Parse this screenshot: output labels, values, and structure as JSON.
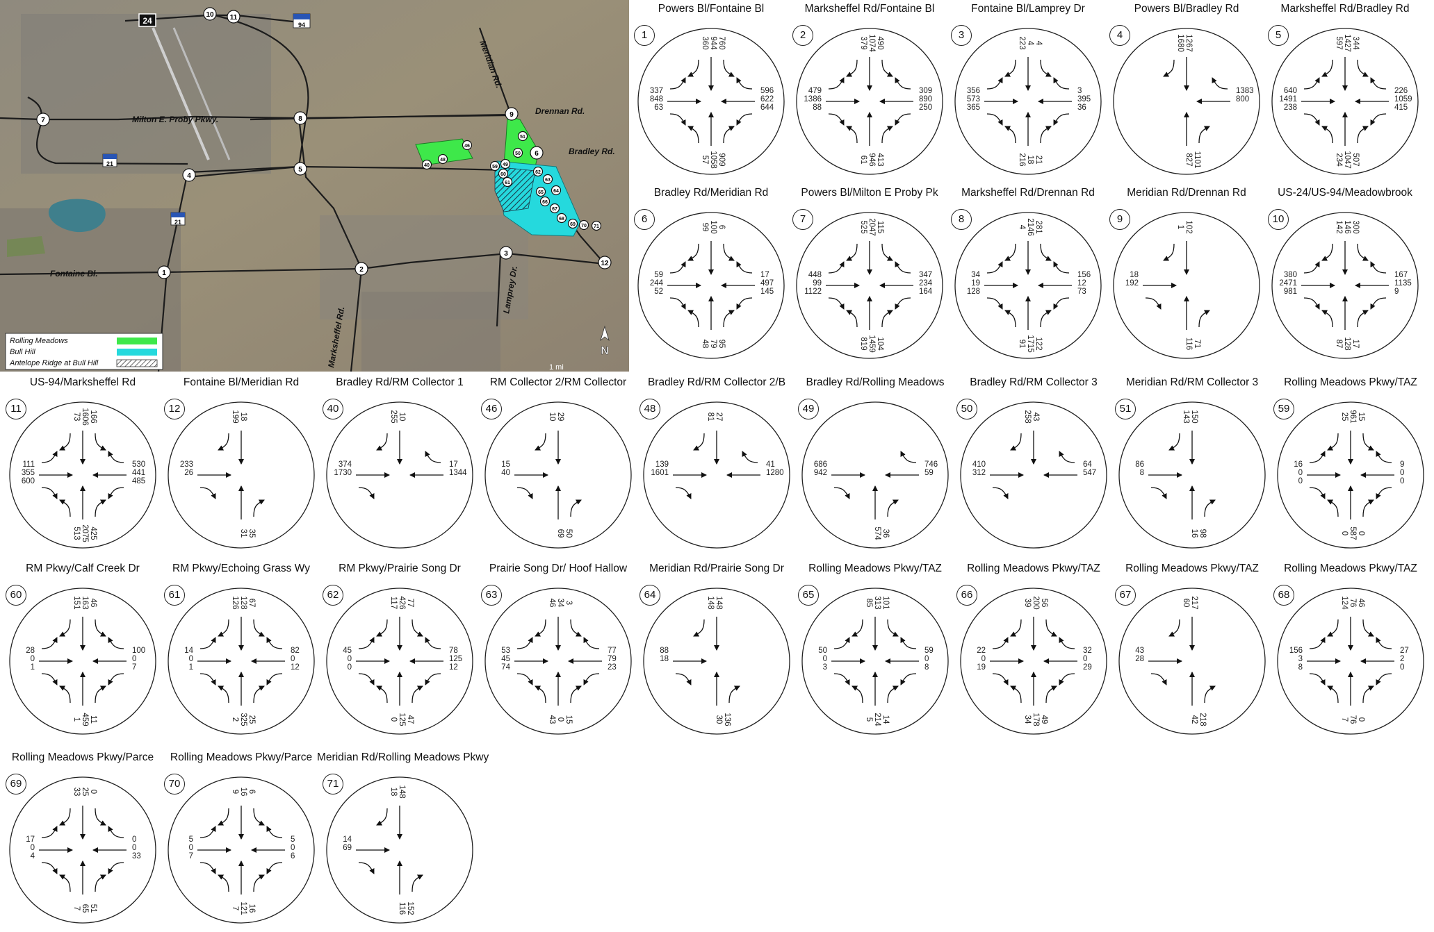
{
  "map": {
    "roads": [
      "Milton E. Proby Pkwy.",
      "Fontaine Bl.",
      "Marksheffel Rd.",
      "Meridian Rd.",
      "Drennan Rd.",
      "Bradley Rd.",
      "Lamprey Dr."
    ],
    "highway_shields": [
      "24",
      "94",
      "21",
      "21"
    ],
    "intersection_markers": [
      "1",
      "2",
      "3",
      "4",
      "5",
      "6",
      "7",
      "8",
      "9",
      "10",
      "11",
      "12",
      "40",
      "46",
      "48",
      "49",
      "50",
      "51",
      "59",
      "60",
      "61",
      "62",
      "63",
      "64",
      "65",
      "66",
      "67",
      "68",
      "69",
      "70",
      "71"
    ],
    "legend": [
      {
        "label": "Rolling Meadows",
        "color": "#3ee84a"
      },
      {
        "label": "Bull Hill",
        "color": "#25d9dd"
      },
      {
        "label": "Antelope Ridge at Bull Hill",
        "color": "hatch"
      }
    ],
    "north_label": "N",
    "scale_label": "1 mi"
  },
  "panels": [
    {
      "id": "1",
      "title": "Powers Bl/Fontaine Bl",
      "legs": {
        "N": [
          "360",
          "944",
          "760"
        ],
        "E": [
          "596",
          "622",
          "644"
        ],
        "S": [
          "909",
          "1058",
          "57"
        ],
        "W": [
          "337",
          "848",
          "63"
        ]
      }
    },
    {
      "id": "2",
      "title": "Marksheffel Rd/Fontaine Bl",
      "legs": {
        "N": [
          "379",
          "1074",
          "490"
        ],
        "E": [
          "309",
          "890",
          "250"
        ],
        "S": [
          "413",
          "946",
          "61"
        ],
        "W": [
          "479",
          "1386",
          "88"
        ]
      }
    },
    {
      "id": "3",
      "title": "Fontaine Bl/Lamprey Dr",
      "legs": {
        "N": [
          "223",
          "4",
          "4"
        ],
        "E": [
          "3",
          "395",
          "36"
        ],
        "S": [
          "21",
          "18",
          "216"
        ],
        "W": [
          "356",
          "573",
          "365"
        ]
      }
    },
    {
      "id": "4",
      "title": "Powers Bl/Bradley Rd",
      "legs": {
        "N": [
          "1680",
          "1267"
        ],
        "E": [
          "1383",
          "800"
        ],
        "S": [
          "1101",
          "827"
        ]
      }
    },
    {
      "id": "5",
      "title": "Marksheffel Rd/Bradley Rd",
      "legs": {
        "N": [
          "597",
          "1427",
          "344"
        ],
        "E": [
          "226",
          "1059",
          "415"
        ],
        "S": [
          "507",
          "1047",
          "234"
        ],
        "W": [
          "640",
          "1491",
          "238"
        ]
      }
    },
    {
      "id": "6",
      "title": "Bradley Rd/Meridian Rd",
      "legs": {
        "N": [
          "99",
          "100",
          "6"
        ],
        "E": [
          "17",
          "497",
          "145"
        ],
        "S": [
          "95",
          "79",
          "48"
        ],
        "W": [
          "59",
          "244",
          "52"
        ]
      }
    },
    {
      "id": "7",
      "title": "Powers Bl/Milton E Proby Pk",
      "legs": {
        "N": [
          "525",
          "2047",
          "115"
        ],
        "E": [
          "347",
          "234",
          "164"
        ],
        "S": [
          "104",
          "1459",
          "819"
        ],
        "W": [
          "448",
          "99",
          "1122"
        ]
      }
    },
    {
      "id": "8",
      "title": "Marksheffel Rd/Drennan Rd",
      "legs": {
        "N": [
          "4",
          "2146",
          "281"
        ],
        "E": [
          "156",
          "12",
          "73"
        ],
        "S": [
          "122",
          "1715",
          "91"
        ],
        "W": [
          "34",
          "19",
          "128"
        ]
      }
    },
    {
      "id": "9",
      "title": "Meridian Rd/Drennan Rd",
      "legs": {
        "N": [
          "1",
          "102"
        ],
        "W": [
          "18",
          "192"
        ],
        "S": [
          "71",
          "116"
        ]
      }
    },
    {
      "id": "10",
      "title": "US-24/US-94/Meadowbrook",
      "legs": {
        "N": [
          "142",
          "146",
          "300"
        ],
        "E": [
          "167",
          "1135",
          "9"
        ],
        "S": [
          "17",
          "128",
          "87"
        ],
        "W": [
          "380",
          "2471",
          "981"
        ]
      }
    },
    {
      "id": "11",
      "title": "US-94/Marksheffel Rd",
      "legs": {
        "N": [
          "73",
          "1606",
          "166"
        ],
        "E": [
          "530",
          "441",
          "485"
        ],
        "S": [
          "425",
          "2075",
          "513"
        ],
        "W": [
          "111",
          "355",
          "600"
        ]
      }
    },
    {
      "id": "12",
      "title": "Fontaine Bl/Meridian Rd",
      "legs": {
        "N": [
          "199",
          "18"
        ],
        "W": [
          "233",
          "26"
        ],
        "S": [
          "35",
          "31"
        ]
      }
    },
    {
      "id": "40",
      "title": "Bradley Rd/RM Collector 1",
      "legs": {
        "N": [
          "255",
          "10"
        ],
        "E": [
          "17",
          "1344"
        ],
        "W": [
          "374",
          "1730"
        ]
      }
    },
    {
      "id": "46",
      "title": "RM Collector 2/RM Collector",
      "legs": {
        "N": [
          "10",
          "29"
        ],
        "W": [
          "15",
          "40"
        ],
        "S": [
          "50",
          "69"
        ]
      }
    },
    {
      "id": "48",
      "title": "Bradley Rd/RM Collector 2/B",
      "legs": {
        "N": [
          "81",
          "27"
        ],
        "E": [
          "41",
          "1280"
        ],
        "W": [
          "139",
          "1601"
        ]
      }
    },
    {
      "id": "49",
      "title": "Bradley Rd/Rolling Meadows",
      "legs": {
        "E": [
          "746",
          "59"
        ],
        "S": [
          "36",
          "574"
        ],
        "W": [
          "686",
          "942"
        ]
      }
    },
    {
      "id": "50",
      "title": "Bradley Rd/RM Collector 3",
      "legs": {
        "N": [
          "258",
          "43"
        ],
        "E": [
          "64",
          "547"
        ],
        "W": [
          "410",
          "312"
        ]
      }
    },
    {
      "id": "51",
      "title": "Meridian Rd/RM Collector 3",
      "legs": {
        "N": [
          "143",
          "150"
        ],
        "W": [
          "86",
          "8"
        ],
        "S": [
          "98",
          "16"
        ]
      }
    },
    {
      "id": "59",
      "title": "Rolling Meadows Pkwy/TAZ",
      "legs": {
        "N": [
          "25",
          "961",
          "15"
        ],
        "E": [
          "9",
          "0",
          "0"
        ],
        "S": [
          "0",
          "587",
          "0"
        ],
        "W": [
          "16",
          "0",
          "0"
        ]
      }
    },
    {
      "id": "60",
      "title": "RM Pkwy/Calf Creek Dr",
      "legs": {
        "N": [
          "151",
          "163",
          "46"
        ],
        "E": [
          "100",
          "0",
          "7"
        ],
        "S": [
          "11",
          "459",
          "1"
        ],
        "W": [
          "28",
          "0",
          "1"
        ]
      }
    },
    {
      "id": "61",
      "title": "RM Pkwy/Echoing Grass Wy",
      "legs": {
        "N": [
          "126",
          "128",
          "67"
        ],
        "E": [
          "82",
          "0",
          "12"
        ],
        "S": [
          "25",
          "325",
          "2"
        ],
        "W": [
          "14",
          "0",
          "1"
        ]
      }
    },
    {
      "id": "62",
      "title": "RM Pkwy/Prairie Song Dr",
      "legs": {
        "N": [
          "117",
          "426",
          "77"
        ],
        "E": [
          "78",
          "125",
          "12"
        ],
        "S": [
          "47",
          "125",
          "0"
        ],
        "W": [
          "45",
          "0",
          "0"
        ]
      }
    },
    {
      "id": "63",
      "title": "Prairie Song Dr/ Hoof Hallow",
      "legs": {
        "N": [
          "46",
          "34",
          "3"
        ],
        "E": [
          "77",
          "79",
          "23"
        ],
        "S": [
          "15",
          "0",
          "43"
        ],
        "W": [
          "53",
          "45",
          "74"
        ]
      }
    },
    {
      "id": "64",
      "title": "Meridian Rd/Prairie Song Dr",
      "legs": {
        "N": [
          "148",
          "148"
        ],
        "W": [
          "88",
          "18"
        ],
        "S": [
          "136",
          "30"
        ]
      }
    },
    {
      "id": "65",
      "title": "Rolling Meadows Pkwy/TAZ",
      "legs": {
        "N": [
          "85",
          "313",
          "101"
        ],
        "E": [
          "59",
          "0",
          "8"
        ],
        "S": [
          "14",
          "214",
          "5"
        ],
        "W": [
          "50",
          "0",
          "3"
        ]
      }
    },
    {
      "id": "66",
      "title": "Rolling Meadows Pkwy/TAZ",
      "legs": {
        "N": [
          "39",
          "200",
          "56"
        ],
        "E": [
          "32",
          "0",
          "29"
        ],
        "S": [
          "49",
          "178",
          "34"
        ],
        "W": [
          "22",
          "0",
          "19"
        ]
      }
    },
    {
      "id": "67",
      "title": "Rolling Meadows Pkwy/TAZ",
      "legs": {
        "N": [
          "60",
          "217"
        ],
        "W": [
          "43",
          "28"
        ],
        "S": [
          "218",
          "42"
        ]
      }
    },
    {
      "id": "68",
      "title": "Rolling Meadows Pkwy/TAZ",
      "legs": {
        "N": [
          "124",
          "76",
          "46"
        ],
        "E": [
          "27",
          "2",
          "0"
        ],
        "S": [
          "0",
          "76",
          "7"
        ],
        "W": [
          "156",
          "3",
          "8"
        ]
      }
    },
    {
      "id": "69",
      "title": "Rolling Meadows Pkwy/Parce",
      "legs": {
        "N": [
          "33",
          "25",
          "0"
        ],
        "E": [
          "0",
          "0",
          "33"
        ],
        "S": [
          "51",
          "65",
          "7"
        ],
        "W": [
          "17",
          "0",
          "4"
        ]
      }
    },
    {
      "id": "70",
      "title": "Rolling Meadows Pkwy/Parce",
      "legs": {
        "N": [
          "9",
          "16",
          "6"
        ],
        "E": [
          "5",
          "0",
          "6"
        ],
        "S": [
          "16",
          "121",
          "7"
        ],
        "W": [
          "5",
          "0",
          "7"
        ]
      }
    },
    {
      "id": "71",
      "title": "Meridian Rd/Rolling Meadows Pkwy",
      "legs": {
        "N": [
          "18",
          "148"
        ],
        "W": [
          "14",
          "69"
        ],
        "S": [
          "152",
          "116"
        ]
      }
    }
  ]
}
